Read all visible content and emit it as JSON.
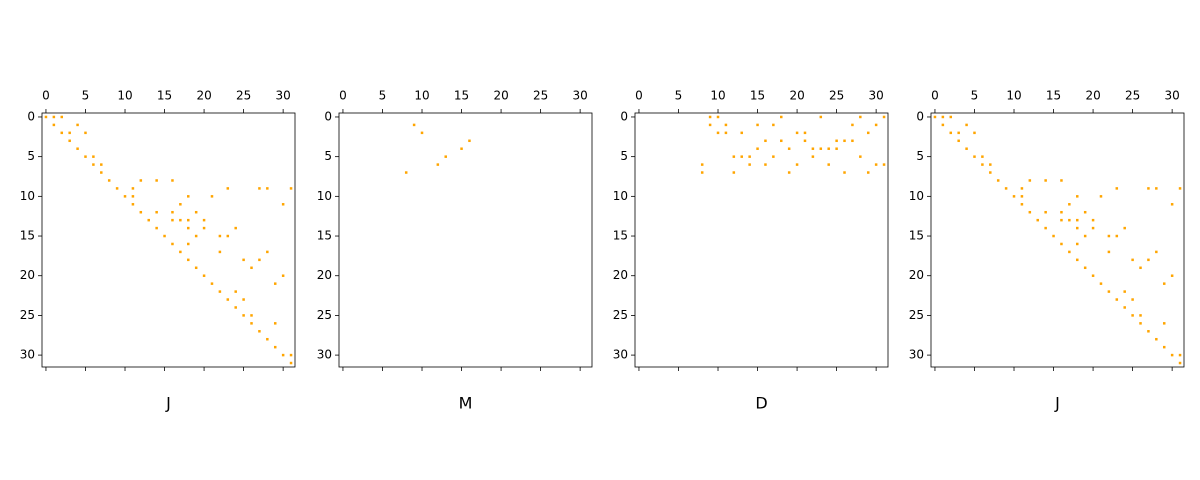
{
  "chart_data": [
    {
      "type": "scatter",
      "xlabel": "J",
      "color": "#ffa500",
      "xlim": [
        -0.5,
        31.5
      ],
      "ylim": [
        31.5,
        -0.5
      ],
      "xticks": [
        0,
        5,
        10,
        15,
        20,
        25,
        30
      ],
      "yticks": [
        0,
        5,
        10,
        15,
        20,
        25,
        30
      ],
      "x": [
        0,
        1,
        2,
        1,
        4,
        2,
        3,
        5,
        3,
        4,
        5,
        6,
        6,
        7,
        7,
        8,
        12,
        14,
        16,
        9,
        11,
        23,
        27,
        28,
        31,
        10,
        11,
        18,
        21,
        11,
        17,
        30,
        12,
        14,
        16,
        19,
        13,
        16,
        17,
        18,
        20,
        14,
        18,
        20,
        24,
        15,
        19,
        22,
        23,
        16,
        18,
        17,
        22,
        28,
        18,
        25,
        27,
        19,
        26,
        20,
        30,
        21,
        29,
        22,
        24,
        23,
        25,
        24,
        25,
        26,
        26,
        29,
        27,
        28,
        29,
        30,
        31,
        31
      ],
      "y": [
        0,
        0,
        0,
        1,
        1,
        2,
        2,
        2,
        3,
        4,
        5,
        5,
        6,
        6,
        7,
        8,
        8,
        8,
        8,
        9,
        9,
        9,
        9,
        9,
        9,
        10,
        10,
        10,
        10,
        11,
        11,
        11,
        12,
        12,
        12,
        12,
        13,
        13,
        13,
        13,
        13,
        14,
        14,
        14,
        14,
        15,
        15,
        15,
        15,
        16,
        16,
        17,
        17,
        17,
        18,
        18,
        18,
        19,
        19,
        20,
        20,
        21,
        21,
        22,
        22,
        23,
        23,
        24,
        25,
        25,
        26,
        26,
        27,
        28,
        29,
        30,
        30,
        31
      ]
    },
    {
      "type": "scatter",
      "xlabel": "M",
      "color": "#ffa500",
      "xlim": [
        -0.5,
        31.5
      ],
      "ylim": [
        31.5,
        -0.5
      ],
      "xticks": [
        0,
        5,
        10,
        15,
        20,
        25,
        30
      ],
      "yticks": [
        0,
        5,
        10,
        15,
        20,
        25,
        30
      ],
      "x": [
        9,
        10,
        16,
        15,
        13,
        12,
        8
      ],
      "y": [
        1,
        2,
        3,
        4,
        5,
        6,
        7
      ]
    },
    {
      "type": "scatter",
      "xlabel": "D",
      "color": "#ffa500",
      "xlim": [
        -0.5,
        31.5
      ],
      "ylim": [
        31.5,
        -0.5
      ],
      "xticks": [
        0,
        5,
        10,
        15,
        20,
        25,
        30
      ],
      "yticks": [
        0,
        5,
        10,
        15,
        20,
        25,
        30
      ],
      "x": [
        9,
        10,
        18,
        23,
        28,
        31,
        9,
        11,
        15,
        17,
        27,
        30,
        10,
        11,
        13,
        20,
        21,
        29,
        16,
        18,
        21,
        25,
        26,
        27,
        15,
        19,
        22,
        23,
        24,
        25,
        12,
        13,
        14,
        17,
        22,
        28,
        8,
        14,
        16,
        20,
        24,
        30,
        31,
        8,
        12,
        19,
        26,
        29
      ],
      "y": [
        0,
        0,
        0,
        0,
        0,
        0,
        1,
        1,
        1,
        1,
        1,
        1,
        2,
        2,
        2,
        2,
        2,
        2,
        3,
        3,
        3,
        3,
        3,
        3,
        4,
        4,
        4,
        4,
        4,
        4,
        5,
        5,
        5,
        5,
        5,
        5,
        6,
        6,
        6,
        6,
        6,
        6,
        6,
        7,
        7,
        7,
        7,
        7
      ]
    },
    {
      "type": "scatter",
      "xlabel": "J",
      "color": "#ffa500",
      "xlim": [
        -0.5,
        31.5
      ],
      "ylim": [
        31.5,
        -0.5
      ],
      "xticks": [
        0,
        5,
        10,
        15,
        20,
        25,
        30
      ],
      "yticks": [
        0,
        5,
        10,
        15,
        20,
        25,
        30
      ],
      "x": [
        0,
        1,
        2,
        1,
        4,
        2,
        3,
        5,
        3,
        4,
        5,
        6,
        6,
        7,
        7,
        8,
        12,
        14,
        16,
        9,
        11,
        23,
        27,
        28,
        31,
        10,
        11,
        18,
        21,
        11,
        17,
        30,
        12,
        14,
        16,
        19,
        13,
        16,
        17,
        18,
        20,
        14,
        18,
        20,
        24,
        15,
        19,
        22,
        23,
        16,
        18,
        17,
        22,
        28,
        18,
        25,
        27,
        19,
        26,
        20,
        30,
        21,
        29,
        22,
        24,
        23,
        25,
        24,
        25,
        26,
        26,
        29,
        27,
        28,
        29,
        30,
        31,
        31
      ],
      "y": [
        0,
        0,
        0,
        1,
        1,
        2,
        2,
        2,
        3,
        4,
        5,
        5,
        6,
        6,
        7,
        8,
        8,
        8,
        8,
        9,
        9,
        9,
        9,
        9,
        9,
        10,
        10,
        10,
        10,
        11,
        11,
        11,
        12,
        12,
        12,
        12,
        13,
        13,
        13,
        13,
        13,
        14,
        14,
        14,
        14,
        15,
        15,
        15,
        15,
        16,
        16,
        17,
        17,
        17,
        18,
        18,
        18,
        19,
        19,
        20,
        20,
        21,
        21,
        22,
        22,
        23,
        23,
        24,
        25,
        25,
        26,
        26,
        27,
        28,
        29,
        30,
        30,
        31
      ]
    }
  ]
}
